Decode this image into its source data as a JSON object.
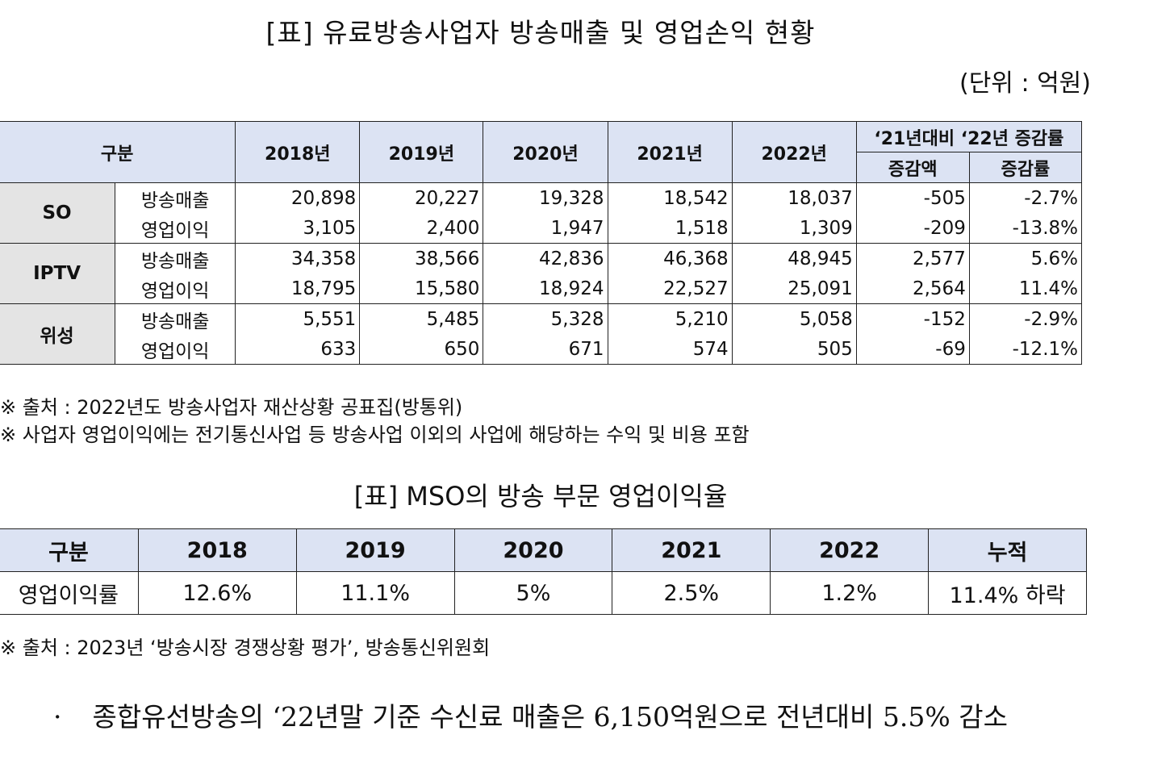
{
  "title1": "[표] 유료방송사업자 방송매출 및 영업손익 현황",
  "unit": "(단위 : 억원)",
  "table1": {
    "header_group": "구분",
    "years": [
      "2018년",
      "2019년",
      "2020년",
      "2021년",
      "2022년"
    ],
    "change_header": "‘21년대비 ‘22년 증감률",
    "change_amount": "증감액",
    "change_rate": "증감률",
    "groups": [
      {
        "name": "SO",
        "rows": [
          {
            "label": "방송매출",
            "values": [
              "20,898",
              "20,227",
              "19,328",
              "18,542",
              "18,037"
            ],
            "amount": "-505",
            "rate": "-2.7%"
          },
          {
            "label": "영업이익",
            "values": [
              "3,105",
              "2,400",
              "1,947",
              "1,518",
              "1,309"
            ],
            "amount": "-209",
            "rate": "-13.8%"
          }
        ]
      },
      {
        "name": "IPTV",
        "rows": [
          {
            "label": "방송매출",
            "values": [
              "34,358",
              "38,566",
              "42,836",
              "46,368",
              "48,945"
            ],
            "amount": "2,577",
            "rate": "5.6%"
          },
          {
            "label": "영업이익",
            "values": [
              "18,795",
              "15,580",
              "18,924",
              "22,527",
              "25,091"
            ],
            "amount": "2,564",
            "rate": "11.4%"
          }
        ]
      },
      {
        "name": "위성",
        "rows": [
          {
            "label": "방송매출",
            "values": [
              "5,551",
              "5,485",
              "5,328",
              "5,210",
              "5,058"
            ],
            "amount": "-152",
            "rate": "-2.9%"
          },
          {
            "label": "영업이익",
            "values": [
              "633",
              "650",
              "671",
              "574",
              "505"
            ],
            "amount": "-69",
            "rate": "-12.1%"
          }
        ]
      }
    ]
  },
  "notes1": [
    "※ 출처 : 2022년도 방송사업자 재산상황 공표집(방통위)",
    "※ 사업자 영업이익에는 전기통신사업 등 방송사업 이외의 사업에 해당하는 수익 및 비용 포함"
  ],
  "title2": "[표] MSO의 방송 부문 영업이익율",
  "table2": {
    "headers": [
      "구분",
      "2018",
      "2019",
      "2020",
      "2021",
      "2022",
      "누적"
    ],
    "row": [
      "영업이익률",
      "12.6%",
      "11.1%",
      "5%",
      "2.5%",
      "1.2%",
      "11.4% 하락"
    ]
  },
  "note2": "※ 출처 : 2023년 ‘방송시장 경쟁상황 평가’, 방송통신위원회",
  "bullet": {
    "marker": "·",
    "text": "종합유선방송의 ‘22년말 기준 수신료 매출은 6,150억원으로 전년대비 5.5% 감소"
  }
}
